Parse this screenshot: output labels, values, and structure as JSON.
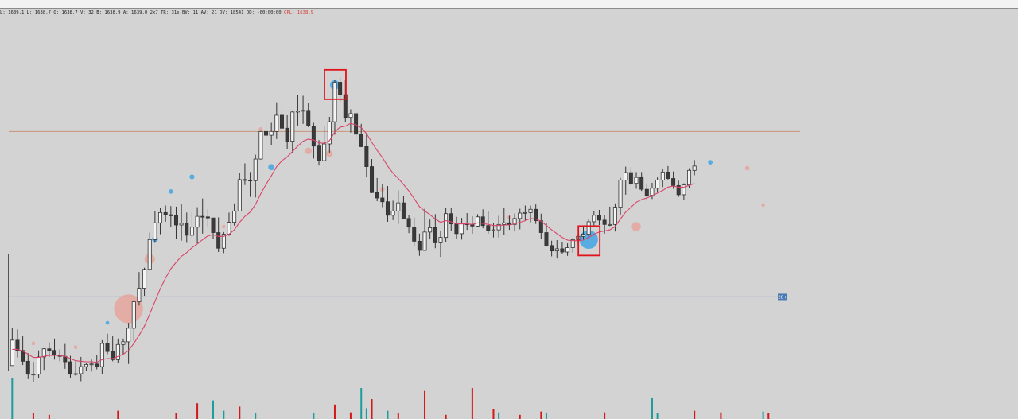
{
  "window": {
    "info_text": "L: 1639.1 L: 1638.7 O: 1638.7 V: 32 B: 1638.9 A: 1639.0 2x7 TR: 31s BV: 11 AV: 21 DV: 18541 DD: -00:00:00",
    "cpl_text": "CPL: 1638.9"
  },
  "chart_data": {
    "type": "candlestick",
    "title": "",
    "xlabel": "",
    "ylabel": "",
    "price_range": [
      1605,
      1670
    ],
    "colors": {
      "background": "#d3d3d3",
      "candle_up": "#f4f4f4",
      "candle_down": "#3a3a3a",
      "wick": "#333333",
      "moving_average": "#d9456a",
      "resistance_line": "#c9937a",
      "support_line": "#7f9fc0",
      "bubble_buy": "#3aa3e6",
      "bubble_sell": "#f08c7e",
      "volume_up": "#1e9c9c",
      "volume_down": "#d21818",
      "highlight_box": "#e0141c"
    },
    "candles": [
      [
        1606.5,
        1613.5,
        1606.5,
        1611.2
      ],
      [
        1611.2,
        1613.2,
        1608,
        1609.3
      ],
      [
        1609.3,
        1611.9,
        1606.6,
        1607.3
      ],
      [
        1607.3,
        1608.8,
        1604,
        1604.9
      ],
      [
        1604.9,
        1607.2,
        1603.5,
        1604.9
      ],
      [
        1604.9,
        1609.3,
        1604.2,
        1608.1
      ],
      [
        1608.1,
        1609.7,
        1605.7,
        1609.6
      ],
      [
        1609.6,
        1610.8,
        1608.1,
        1609.3
      ],
      [
        1609.3,
        1611.5,
        1607.6,
        1608.4
      ],
      [
        1608.4,
        1609.5,
        1607.3,
        1608.2
      ],
      [
        1608.2,
        1610.5,
        1605.9,
        1607.2
      ],
      [
        1607.2,
        1608.3,
        1604.2,
        1604.9
      ],
      [
        1604.9,
        1607.3,
        1604.6,
        1605
      ],
      [
        1605,
        1608.1,
        1603.6,
        1606.3
      ],
      [
        1606.3,
        1606.9,
        1605.5,
        1606.7
      ],
      [
        1606.7,
        1607.6,
        1605.4,
        1606.8
      ],
      [
        1606.8,
        1608.4,
        1605.8,
        1606.3
      ],
      [
        1606.3,
        1611.2,
        1605,
        1610.6
      ],
      [
        1610.6,
        1612.4,
        1608.6,
        1609.1
      ],
      [
        1609.1,
        1611.9,
        1607.3,
        1607.6
      ],
      [
        1607.6,
        1611.5,
        1607,
        1610.4
      ],
      [
        1610.4,
        1611.5,
        1608.4,
        1610.9
      ],
      [
        1610.9,
        1614.4,
        1606.8,
        1613.4
      ],
      [
        1613.4,
        1618.6,
        1611.1,
        1618.3
      ],
      [
        1618.3,
        1623.8,
        1617.6,
        1620.8
      ],
      [
        1620.8,
        1624.6,
        1619.4,
        1624.3
      ],
      [
        1624.3,
        1631.1,
        1624.3,
        1629.8
      ],
      [
        1629.8,
        1635,
        1629.2,
        1632.9
      ],
      [
        1632.9,
        1635.6,
        1630.8,
        1634.8
      ],
      [
        1634.8,
        1636.1,
        1633.1,
        1634.4
      ],
      [
        1634.4,
        1636,
        1632.1,
        1634.2
      ],
      [
        1634.2,
        1635.9,
        1629.9,
        1632.5
      ],
      [
        1632.5,
        1636.4,
        1629.6,
        1632.8
      ],
      [
        1632.8,
        1634.8,
        1629.2,
        1630.6
      ],
      [
        1630.6,
        1634.9,
        1630.1,
        1632.1
      ],
      [
        1632.1,
        1635.8,
        1629.1,
        1634.1
      ],
      [
        1634.1,
        1637.4,
        1630.9,
        1634
      ],
      [
        1634,
        1635.4,
        1632.1,
        1633.8
      ],
      [
        1633.8,
        1633.8,
        1630,
        1631.1
      ],
      [
        1631.1,
        1633.9,
        1627.5,
        1628.2
      ],
      [
        1628.2,
        1631.2,
        1627.3,
        1630.8
      ],
      [
        1630.8,
        1634.8,
        1630.5,
        1633
      ],
      [
        1633,
        1636.5,
        1632.4,
        1635.1
      ],
      [
        1635.1,
        1642.2,
        1635,
        1640.9
      ],
      [
        1640.9,
        1643.9,
        1639.9,
        1640.8
      ],
      [
        1640.8,
        1642.3,
        1637.7,
        1640.7
      ],
      [
        1640.7,
        1645.5,
        1637.6,
        1644.7
      ],
      [
        1644.7,
        1649.9,
        1644.6,
        1649.8
      ],
      [
        1649.8,
        1652.2,
        1648.1,
        1649.1
      ],
      [
        1649.1,
        1651.4,
        1647.2,
        1649.8
      ],
      [
        1649.8,
        1655.2,
        1648.4,
        1652.8
      ],
      [
        1652.8,
        1654.5,
        1649.9,
        1650.4
      ],
      [
        1650.4,
        1652.8,
        1646.6,
        1648
      ],
      [
        1648,
        1653.6,
        1645.8,
        1653.4
      ],
      [
        1653.4,
        1656.6,
        1650.9,
        1653.6
      ],
      [
        1653.6,
        1656.4,
        1651.2,
        1653.7
      ],
      [
        1653.7,
        1655.1,
        1650.6,
        1650.8
      ],
      [
        1650.8,
        1651.4,
        1644.8,
        1647.1
      ],
      [
        1647.1,
        1648.2,
        1643.5,
        1644.4
      ],
      [
        1644.4,
        1650.8,
        1644.3,
        1647.5
      ],
      [
        1647.5,
        1652.5,
        1645.9,
        1651.6
      ],
      [
        1651.6,
        1659.3,
        1649.2,
        1658.9
      ],
      [
        1658.9,
        1659.7,
        1655.3,
        1656.6
      ],
      [
        1656.6,
        1659.3,
        1651.6,
        1652.4
      ],
      [
        1652.4,
        1653.9,
        1649.6,
        1653.1
      ],
      [
        1653.1,
        1653.5,
        1648.4,
        1649.3
      ],
      [
        1649.3,
        1651.2,
        1646.9,
        1647
      ],
      [
        1647,
        1649.4,
        1641.3,
        1643.3
      ],
      [
        1643.3,
        1644.7,
        1638.4,
        1638.5
      ],
      [
        1638.5,
        1641.2,
        1636.9,
        1637.5
      ],
      [
        1637.5,
        1640,
        1635.8,
        1636.8
      ],
      [
        1636.8,
        1639.7,
        1633.1,
        1634.3
      ],
      [
        1634.3,
        1637,
        1633.4,
        1635.1
      ],
      [
        1635.1,
        1638.9,
        1632.7,
        1636.6
      ],
      [
        1636.6,
        1637.9,
        1633.6,
        1633.7
      ],
      [
        1633.7,
        1634.3,
        1631,
        1632.1
      ],
      [
        1632.1,
        1633.9,
        1628.7,
        1629.5
      ],
      [
        1629.5,
        1630.9,
        1626.8,
        1627.8
      ],
      [
        1627.8,
        1635.5,
        1627.7,
        1631.2
      ],
      [
        1631.2,
        1633.5,
        1629.9,
        1632
      ],
      [
        1632,
        1634.5,
        1628.2,
        1629.2
      ],
      [
        1629.2,
        1631.4,
        1626.6,
        1630.2
      ],
      [
        1630.2,
        1635.6,
        1629.4,
        1634.6
      ],
      [
        1634.6,
        1635.6,
        1631.4,
        1632.7
      ],
      [
        1632.7,
        1634,
        1630,
        1630.9
      ],
      [
        1630.9,
        1633.8,
        1629.8,
        1632.7
      ],
      [
        1632.7,
        1634.7,
        1631.6,
        1632.6
      ],
      [
        1632.6,
        1634.1,
        1630.9,
        1632.3
      ],
      [
        1632.3,
        1634.5,
        1632.2,
        1634
      ],
      [
        1634,
        1635.4,
        1631.9,
        1632.4
      ],
      [
        1632.4,
        1635,
        1630.9,
        1631.5
      ],
      [
        1631.5,
        1632.9,
        1630.2,
        1631.6
      ],
      [
        1631.6,
        1634.2,
        1630.2,
        1632.6
      ],
      [
        1632.6,
        1635.7,
        1630.7,
        1632.9
      ],
      [
        1632.9,
        1634.2,
        1631.6,
        1632.6
      ],
      [
        1632.6,
        1634.6,
        1631.3,
        1633.7
      ],
      [
        1633.7,
        1635.5,
        1631.7,
        1634.7
      ],
      [
        1634.7,
        1636.1,
        1633.3,
        1634.8
      ],
      [
        1634.8,
        1636.1,
        1633,
        1635.4
      ],
      [
        1635.4,
        1636.3,
        1632.7,
        1633.3
      ],
      [
        1633.3,
        1634.6,
        1630,
        1631.1
      ],
      [
        1631.1,
        1632.8,
        1628.5,
        1628.7
      ],
      [
        1628.7,
        1629.6,
        1626.7,
        1627.7
      ],
      [
        1627.7,
        1629.7,
        1626.3,
        1628.1
      ],
      [
        1628.1,
        1629.4,
        1627.2,
        1627.5
      ],
      [
        1627.5,
        1629.1,
        1626.8,
        1628.3
      ],
      [
        1628.3,
        1630.1,
        1627.4,
        1629.8
      ],
      [
        1629.8,
        1630.8,
        1628.8,
        1630.4
      ],
      [
        1630.4,
        1632.1,
        1629.8,
        1630.8
      ],
      [
        1630.8,
        1633.6,
        1630.1,
        1633.1
      ],
      [
        1633.1,
        1635.1,
        1632.1,
        1634.3
      ],
      [
        1634.3,
        1635.3,
        1632.5,
        1633.4
      ],
      [
        1633.4,
        1634.3,
        1630.9,
        1632.6
      ],
      [
        1632.6,
        1635.9,
        1632.3,
        1632.6
      ],
      [
        1632.6,
        1636.5,
        1631.3,
        1635.8
      ],
      [
        1635.8,
        1641.2,
        1634.3,
        1640.8
      ],
      [
        1640.8,
        1643.3,
        1638.1,
        1642.2
      ],
      [
        1642.2,
        1643.2,
        1639.8,
        1640.2
      ],
      [
        1640.2,
        1642.3,
        1639.2,
        1641.3
      ],
      [
        1641.3,
        1642.3,
        1638.8,
        1639.1
      ],
      [
        1639.1,
        1640.2,
        1637.1,
        1638
      ],
      [
        1638,
        1640.3,
        1637.3,
        1639.3
      ],
      [
        1639.3,
        1641.3,
        1638.5,
        1640.8
      ],
      [
        1640.8,
        1642.8,
        1639.5,
        1642.3
      ],
      [
        1642.3,
        1643.4,
        1640.9,
        1641.1
      ],
      [
        1641.1,
        1642.4,
        1639.2,
        1639.8
      ],
      [
        1639.8,
        1640.7,
        1637.7,
        1638.1
      ],
      [
        1638.1,
        1640.2,
        1637.1,
        1639.9
      ],
      [
        1639.9,
        1643,
        1639.3,
        1642.6
      ],
      [
        1642.6,
        1644.5,
        1641.7,
        1643.4
      ]
    ],
    "moving_average": [
      1609.5,
      1609.5,
      1609.2,
      1608.6,
      1608,
      1608,
      1608.2,
      1608.4,
      1608.4,
      1608.4,
      1608.2,
      1607.8,
      1607.4,
      1607.3,
      1607.2,
      1607.2,
      1607.1,
      1607.6,
      1607.8,
      1607.8,
      1608.2,
      1608.6,
      1609.3,
      1610.6,
      1612.1,
      1613.8,
      1616,
      1618.4,
      1620.7,
      1622.7,
      1624.4,
      1625.6,
      1626.7,
      1627.4,
      1628.3,
      1629,
      1629.8,
      1630.5,
      1630.7,
      1630.4,
      1630.4,
      1630.8,
      1631.6,
      1633,
      1634.1,
      1634.9,
      1636.3,
      1638.3,
      1640,
      1641.6,
      1643.3,
      1644.4,
      1645.1,
      1646.1,
      1647.1,
      1648,
      1648.4,
      1648.2,
      1647.7,
      1647.6,
      1648.1,
      1649.7,
      1650.6,
      1650.8,
      1651.3,
      1651,
      1650.5,
      1649.4,
      1647.8,
      1646.3,
      1645,
      1643.4,
      1642.1,
      1641.1,
      1640,
      1638.8,
      1637.4,
      1635.9,
      1635.1,
      1634.4,
      1633.6,
      1633,
      1633.3,
      1633.1,
      1632.7,
      1632.7,
      1632.7,
      1632.6,
      1632.9,
      1632.8,
      1632.6,
      1632.4,
      1632.4,
      1632.5,
      1632.5,
      1632.7,
      1633,
      1633.3,
      1633.7,
      1633.6,
      1633.2,
      1632.4,
      1631.6,
      1630.9,
      1630.2,
      1629.7,
      1629.6,
      1629.6,
      1629.7,
      1630.2,
      1630.8,
      1631.2,
      1631.4,
      1631.6,
      1632.2,
      1633.6,
      1634.9,
      1635.8,
      1636.7,
      1637.2,
      1637.5,
      1637.9,
      1638.4,
      1638.9,
      1639.5,
      1639.7,
      1639.5,
      1639.5,
      1639.8,
      1640.2
    ],
    "resistance_line": 1649.8,
    "support_line": 1619.2,
    "support_tag": "28+",
    "volume": [
      {
        "i": 0,
        "v": 100,
        "up": true
      },
      {
        "i": 4,
        "v": 14,
        "up": false
      },
      {
        "i": 7,
        "v": 10,
        "up": false
      },
      {
        "i": 20,
        "v": 20,
        "up": false
      },
      {
        "i": 31,
        "v": 14,
        "up": false
      },
      {
        "i": 35,
        "v": 38,
        "up": false
      },
      {
        "i": 38,
        "v": 45,
        "up": true
      },
      {
        "i": 40,
        "v": 20,
        "up": true
      },
      {
        "i": 43,
        "v": 30,
        "up": false
      },
      {
        "i": 46,
        "v": 14,
        "up": true
      },
      {
        "i": 57,
        "v": 14,
        "up": true
      },
      {
        "i": 61,
        "v": 35,
        "up": false
      },
      {
        "i": 64,
        "v": 16,
        "up": false
      },
      {
        "i": 66,
        "v": 75,
        "up": true
      },
      {
        "i": 67,
        "v": 26,
        "up": true
      },
      {
        "i": 68,
        "v": 48,
        "up": false
      },
      {
        "i": 71,
        "v": 20,
        "up": true
      },
      {
        "i": 73,
        "v": 15,
        "up": false
      },
      {
        "i": 78,
        "v": 68,
        "up": false
      },
      {
        "i": 82,
        "v": 10,
        "up": false
      },
      {
        "i": 87,
        "v": 75,
        "up": false
      },
      {
        "i": 91,
        "v": 24,
        "up": false
      },
      {
        "i": 92,
        "v": 16,
        "up": true
      },
      {
        "i": 96,
        "v": 10,
        "up": false
      },
      {
        "i": 100,
        "v": 18,
        "up": false
      },
      {
        "i": 101,
        "v": 15,
        "up": true
      },
      {
        "i": 112,
        "v": 16,
        "up": false
      },
      {
        "i": 121,
        "v": 52,
        "up": true
      },
      {
        "i": 122,
        "v": 14,
        "up": true
      },
      {
        "i": 129,
        "v": 20,
        "up": false
      },
      {
        "i": 134,
        "v": 16,
        "up": false
      },
      {
        "i": 142,
        "v": 18,
        "up": true
      },
      {
        "i": 143,
        "v": 15,
        "up": false
      }
    ],
    "bubbles": [
      {
        "i": 4,
        "p": 1610.6,
        "r": 0.9,
        "side": "sell"
      },
      {
        "i": 12,
        "p": 1609.9,
        "r": 0.9,
        "side": "sell"
      },
      {
        "i": 18,
        "p": 1614.4,
        "r": 0.9,
        "side": "buy"
      },
      {
        "i": 22,
        "p": 1617,
        "r": 7,
        "side": "sell"
      },
      {
        "i": 26,
        "p": 1626.2,
        "r": 2.5,
        "side": "sell"
      },
      {
        "i": 27,
        "p": 1629.9,
        "r": 1.5,
        "side": "buy"
      },
      {
        "i": 30,
        "p": 1638.7,
        "r": 1.1,
        "side": "buy"
      },
      {
        "i": 34,
        "p": 1641.4,
        "r": 1.2,
        "side": "buy"
      },
      {
        "i": 40,
        "p": 1632.2,
        "r": 0.9,
        "side": "sell"
      },
      {
        "i": 47,
        "p": 1650.2,
        "r": 1,
        "side": "sell"
      },
      {
        "i": 49,
        "p": 1643.2,
        "r": 1.5,
        "side": "buy"
      },
      {
        "i": 56,
        "p": 1646.2,
        "r": 1.6,
        "side": "sell"
      },
      {
        "i": 60,
        "p": 1645.7,
        "r": 1.6,
        "side": "sell"
      },
      {
        "i": 61,
        "p": 1658.4,
        "r": 2.3,
        "side": "buy"
      },
      {
        "i": 70,
        "p": 1639.1,
        "r": 1.1,
        "side": "sell"
      },
      {
        "i": 82,
        "p": 1634.3,
        "r": 1.1,
        "side": "sell"
      },
      {
        "i": 94,
        "p": 1633.9,
        "r": 1,
        "side": "sell"
      },
      {
        "i": 109,
        "p": 1629.8,
        "r": 4.5,
        "side": "buy"
      },
      {
        "i": 118,
        "p": 1632.2,
        "r": 2.2,
        "side": "sell"
      },
      {
        "i": 132,
        "p": 1644.1,
        "r": 1.1,
        "side": "buy"
      },
      {
        "i": 139,
        "p": 1643,
        "r": 1.1,
        "side": "sell"
      },
      {
        "i": 142,
        "p": 1636.2,
        "r": 0.9,
        "side": "sell"
      }
    ],
    "highlight_boxes": [
      {
        "i": 61,
        "p": 1658.7
      },
      {
        "i": 109,
        "p": 1629.8
      }
    ]
  }
}
